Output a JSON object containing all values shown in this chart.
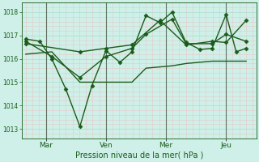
{
  "bg_color": "#cef0e8",
  "line_color": "#1a5c1a",
  "grid_major_color": "#aaddcc",
  "grid_minor_color": "#e8c8c8",
  "xlabel": "Pression niveau de la mer( hPa )",
  "yticks": [
    1013,
    1014,
    1015,
    1016,
    1017,
    1018
  ],
  "xtick_labels": [
    "Mar",
    "Ven",
    "Mer",
    "Jeu"
  ],
  "xtick_positions": [
    1,
    4,
    7,
    10
  ],
  "vlines_x": [
    1,
    4,
    7,
    10
  ],
  "series": [
    {
      "x": [
        0.0,
        0.7,
        1.3,
        2.0,
        2.7,
        3.3,
        4.0,
        4.7,
        5.3,
        6.0,
        6.7,
        7.3,
        8.0,
        8.7,
        9.3,
        10.0,
        10.5,
        11.0
      ],
      "y": [
        1016.85,
        1016.75,
        1016.0,
        1014.7,
        1013.1,
        1014.85,
        1016.35,
        1015.85,
        1016.3,
        1017.85,
        1017.55,
        1018.0,
        1016.7,
        1016.4,
        1016.45,
        1017.9,
        1016.3,
        1016.45
      ],
      "marker": "D",
      "markersize": 2.5,
      "linewidth": 1.0
    },
    {
      "x": [
        0.0,
        1.3,
        2.7,
        4.0,
        5.3,
        6.0,
        7.3,
        8.0,
        9.3,
        10.0,
        11.0
      ],
      "y": [
        1016.75,
        1016.1,
        1015.2,
        1016.1,
        1016.45,
        1017.05,
        1017.7,
        1016.65,
        1016.65,
        1017.05,
        1016.75
      ],
      "marker": "D",
      "markersize": 2.5,
      "linewidth": 1.0
    },
    {
      "x": [
        0.0,
        1.3,
        2.7,
        4.0,
        5.3,
        6.0,
        7.3,
        8.0,
        9.3,
        10.0,
        11.0
      ],
      "y": [
        1016.2,
        1016.3,
        1015.0,
        1015.0,
        1015.0,
        1015.6,
        1015.7,
        1015.8,
        1015.9,
        1015.9,
        1015.9
      ],
      "marker": null,
      "markersize": 0,
      "linewidth": 1.0
    },
    {
      "x": [
        0.0,
        2.7,
        4.0,
        5.3,
        6.7,
        8.0,
        9.3,
        10.0,
        11.0
      ],
      "y": [
        1016.65,
        1016.3,
        1016.45,
        1016.6,
        1017.65,
        1016.6,
        1016.75,
        1016.7,
        1017.65
      ],
      "marker": "D",
      "markersize": 2.5,
      "linewidth": 1.0
    }
  ],
  "ylim": [
    1012.6,
    1018.4
  ],
  "xlim": [
    -0.2,
    11.5
  ],
  "figsize": [
    3.2,
    2.0
  ],
  "dpi": 100
}
